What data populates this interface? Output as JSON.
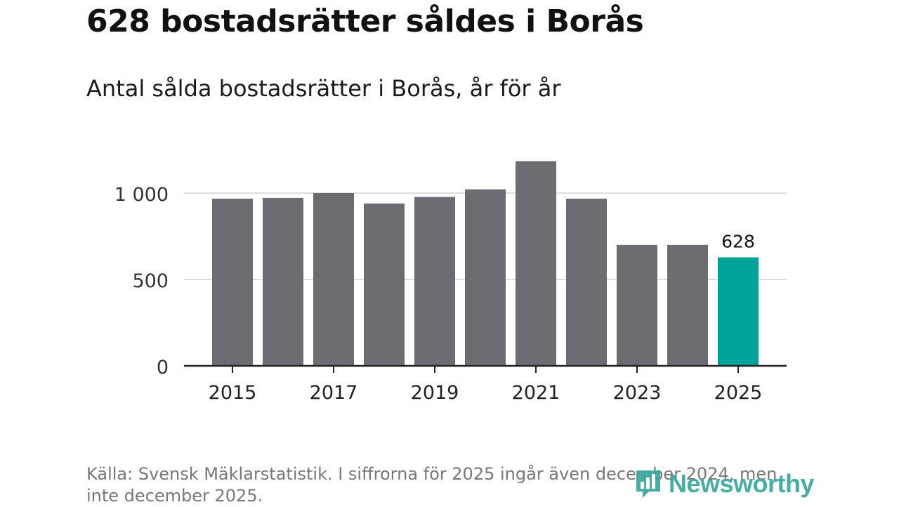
{
  "header": {
    "title": "628 bostadsrätter såldes i Borås",
    "subtitle": "Antal sålda bostadsrätter i Borås, år för år"
  },
  "chart_data": {
    "type": "bar",
    "categories": [
      "2015",
      "2016",
      "2017",
      "2018",
      "2019",
      "2020",
      "2021",
      "2022",
      "2023",
      "2024",
      "2025"
    ],
    "values": [
      968,
      972,
      1000,
      940,
      978,
      1022,
      1185,
      968,
      700,
      700,
      628
    ],
    "ylim": [
      0,
      1200
    ],
    "y_ticks": [
      0,
      500,
      1000
    ],
    "y_tick_labels": [
      "0",
      "500",
      "1 000"
    ],
    "x_tick_labels": [
      "2015",
      "2017",
      "2019",
      "2021",
      "2023",
      "2025"
    ],
    "highlight_index": 10,
    "data_label": "628",
    "grid": true,
    "colors": {
      "bar": "#6d6c73",
      "highlight": "#00a39a",
      "grid": "#dddddd",
      "axis": "#222222"
    }
  },
  "footer": {
    "source": "Källa: Svensk Mäklarstatistik. I siffrorna för 2025 ingår även december 2024, men inte december 2025."
  },
  "logo": {
    "text": "Newsworthy",
    "icon": "newsworthy-logo-icon"
  }
}
